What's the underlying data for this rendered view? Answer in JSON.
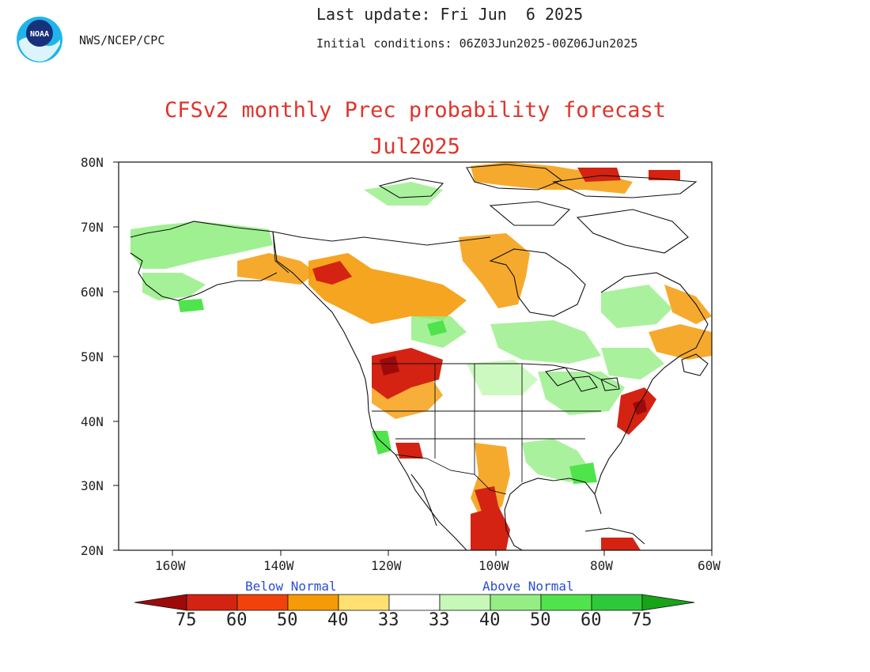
{
  "header": {
    "agency": "NWS/NCEP/CPC",
    "logo_text": "NOAA",
    "last_update": "Last update: Fri Jun  6 2025",
    "initial_conditions": "Initial conditions: 06Z03Jun2025-00Z06Jun2025"
  },
  "title": {
    "line1": "CFSv2 monthly Prec probability forecast",
    "line2": "Jul2025"
  },
  "axes": {
    "lat_labels": [
      "80N",
      "70N",
      "60N",
      "50N",
      "40N",
      "30N",
      "20N"
    ],
    "lon_labels": [
      "160W",
      "140W",
      "120W",
      "100W",
      "80W",
      "60W"
    ],
    "lat_range": [
      20,
      80
    ],
    "lon_range": [
      -170,
      -60
    ]
  },
  "legend": {
    "below_label": "Below Normal",
    "above_label": "Above Normal",
    "levels": [
      "75",
      "60",
      "50",
      "40",
      "33",
      "33",
      "40",
      "50",
      "60",
      "75"
    ],
    "below_colors": [
      "#9e0a0a",
      "#d42312",
      "#f2420c",
      "#f59b08",
      "#ffe070"
    ],
    "above_colors": [
      "#c6f8b8",
      "#95ee85",
      "#50e44c",
      "#2ec93a",
      "#18a418"
    ]
  },
  "map": {
    "variable": "precipitation",
    "colors": {
      "coast": "#111111",
      "border": "#111111"
    }
  }
}
